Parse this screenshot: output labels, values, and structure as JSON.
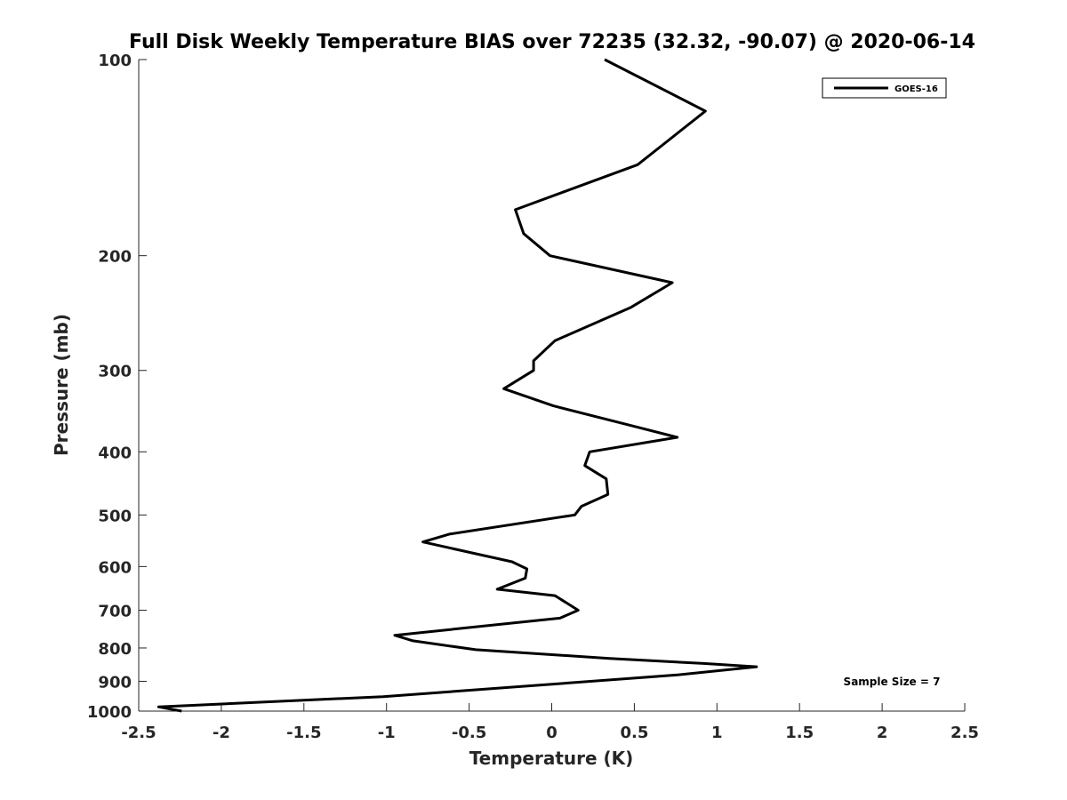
{
  "chart_data": {
    "type": "line",
    "title": "Full Disk Weekly Temperature BIAS over 72235 (32.32, -90.07) @ 2020-06-14",
    "xlabel": "Temperature (K)",
    "ylabel": "Pressure (mb)",
    "xlim": [
      -2.5,
      2.5
    ],
    "ylim": [
      100,
      1000
    ],
    "y_scale": "log",
    "y_reversed": true,
    "x_ticks": [
      "-2.5",
      "-2",
      "-1.5",
      "-1",
      "-0.5",
      "0",
      "0.5",
      "1",
      "1.5",
      "2",
      "2.5"
    ],
    "y_ticks": [
      "100",
      "200",
      "300",
      "400",
      "500",
      "600",
      "700",
      "800",
      "900",
      "1000"
    ],
    "grid": false,
    "legend_position": "top-right",
    "annotation": "Sample Size = 7",
    "series": [
      {
        "name": "GOES-16",
        "color": "#000000",
        "points": [
          [
            0.32,
            100
          ],
          [
            0.93,
            120
          ],
          [
            0.52,
            145
          ],
          [
            -0.22,
            170
          ],
          [
            -0.17,
            185
          ],
          [
            -0.01,
            200
          ],
          [
            0.73,
            220
          ],
          [
            0.48,
            240
          ],
          [
            0.02,
            270
          ],
          [
            -0.11,
            290
          ],
          [
            -0.11,
            300
          ],
          [
            -0.29,
            320
          ],
          [
            0.01,
            340
          ],
          [
            0.49,
            365
          ],
          [
            0.76,
            380
          ],
          [
            0.23,
            400
          ],
          [
            0.2,
            420
          ],
          [
            0.33,
            440
          ],
          [
            0.34,
            465
          ],
          [
            0.18,
            485
          ],
          [
            0.14,
            500
          ],
          [
            -0.62,
            535
          ],
          [
            -0.78,
            550
          ],
          [
            -0.24,
            590
          ],
          [
            -0.15,
            605
          ],
          [
            -0.16,
            625
          ],
          [
            -0.33,
            650
          ],
          [
            0.02,
            665
          ],
          [
            0.16,
            700
          ],
          [
            0.05,
            720
          ],
          [
            -0.95,
            765
          ],
          [
            -0.84,
            780
          ],
          [
            -0.46,
            805
          ],
          [
            0.35,
            830
          ],
          [
            0.92,
            845
          ],
          [
            1.24,
            855
          ],
          [
            0.76,
            880
          ],
          [
            -1.02,
            950
          ],
          [
            -2.38,
            985
          ],
          [
            -2.24,
            1000
          ]
        ]
      }
    ]
  }
}
